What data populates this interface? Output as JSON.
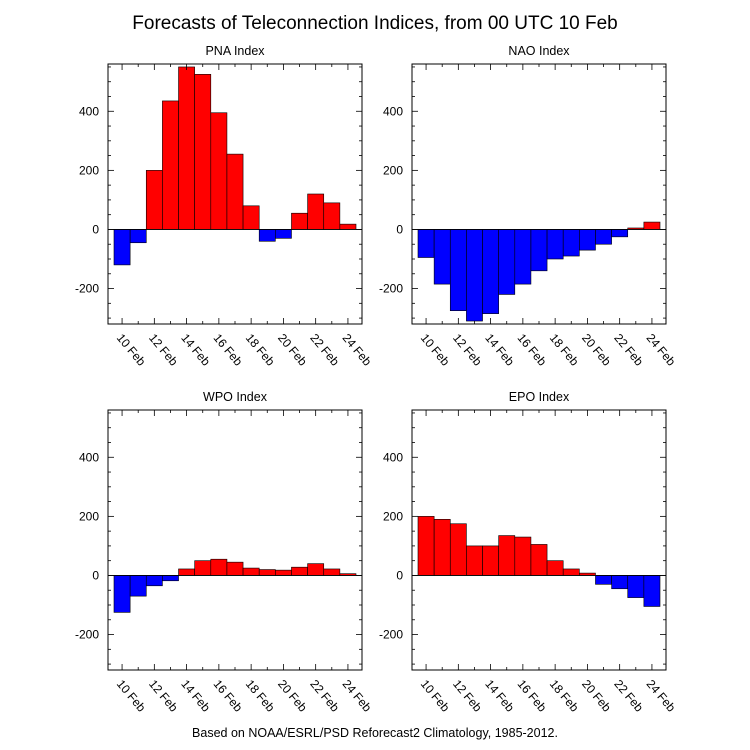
{
  "title": "Forecasts of Teleconnection Indices, from 00 UTC 10 Feb",
  "footer": "Based on NOAA/ESRL/PSD Reforecast2 Climatology, 1985-2012.",
  "colors": {
    "positive": "#ff0000",
    "negative": "#0000ff",
    "edge": "#000000"
  },
  "chart_data": [
    {
      "type": "bar",
      "title": "PNA Index",
      "categories": [
        "10 Feb",
        "11 Feb",
        "12 Feb",
        "13 Feb",
        "14 Feb",
        "15 Feb",
        "16 Feb",
        "17 Feb",
        "18 Feb",
        "19 Feb",
        "20 Feb",
        "21 Feb",
        "22 Feb",
        "23 Feb",
        "24 Feb"
      ],
      "values": [
        -120,
        -45,
        200,
        435,
        550,
        525,
        395,
        255,
        80,
        -40,
        -30,
        55,
        120,
        90,
        18
      ],
      "xticks": [
        "10 Feb",
        "12 Feb",
        "14 Feb",
        "16 Feb",
        "18 Feb",
        "20 Feb",
        "22 Feb",
        "24 Feb"
      ],
      "yticks": [
        "400",
        "200",
        "0",
        "-200"
      ],
      "ylim": [
        -320,
        560
      ]
    },
    {
      "type": "bar",
      "title": "NAO Index",
      "categories": [
        "10 Feb",
        "11 Feb",
        "12 Feb",
        "13 Feb",
        "14 Feb",
        "15 Feb",
        "16 Feb",
        "17 Feb",
        "18 Feb",
        "19 Feb",
        "20 Feb",
        "21 Feb",
        "22 Feb",
        "23 Feb",
        "24 Feb"
      ],
      "values": [
        -95,
        -185,
        -275,
        -310,
        -285,
        -220,
        -185,
        -140,
        -100,
        -90,
        -70,
        -50,
        -25,
        5,
        25
      ],
      "xticks": [
        "10 Feb",
        "12 Feb",
        "14 Feb",
        "16 Feb",
        "18 Feb",
        "20 Feb",
        "22 Feb",
        "24 Feb"
      ],
      "yticks": [
        "400",
        "200",
        "0",
        "-200"
      ],
      "ylim": [
        -320,
        560
      ]
    },
    {
      "type": "bar",
      "title": "WPO Index",
      "categories": [
        "10 Feb",
        "11 Feb",
        "12 Feb",
        "13 Feb",
        "14 Feb",
        "15 Feb",
        "16 Feb",
        "17 Feb",
        "18 Feb",
        "19 Feb",
        "20 Feb",
        "21 Feb",
        "22 Feb",
        "23 Feb",
        "24 Feb"
      ],
      "values": [
        -125,
        -70,
        -35,
        -18,
        22,
        50,
        55,
        45,
        25,
        20,
        18,
        28,
        40,
        22,
        6
      ],
      "xticks": [
        "10 Feb",
        "12 Feb",
        "14 Feb",
        "16 Feb",
        "18 Feb",
        "20 Feb",
        "22 Feb",
        "24 Feb"
      ],
      "yticks": [
        "400",
        "200",
        "0",
        "-200"
      ],
      "ylim": [
        -320,
        560
      ]
    },
    {
      "type": "bar",
      "title": "EPO Index",
      "categories": [
        "10 Feb",
        "11 Feb",
        "12 Feb",
        "13 Feb",
        "14 Feb",
        "15 Feb",
        "16 Feb",
        "17 Feb",
        "18 Feb",
        "19 Feb",
        "20 Feb",
        "21 Feb",
        "22 Feb",
        "23 Feb",
        "24 Feb"
      ],
      "values": [
        200,
        190,
        175,
        100,
        100,
        135,
        130,
        105,
        50,
        22,
        8,
        -30,
        -45,
        -75,
        -105
      ],
      "xticks": [
        "10 Feb",
        "12 Feb",
        "14 Feb",
        "16 Feb",
        "18 Feb",
        "20 Feb",
        "22 Feb",
        "24 Feb"
      ],
      "yticks": [
        "400",
        "200",
        "0",
        "-200"
      ],
      "ylim": [
        -320,
        560
      ]
    }
  ]
}
